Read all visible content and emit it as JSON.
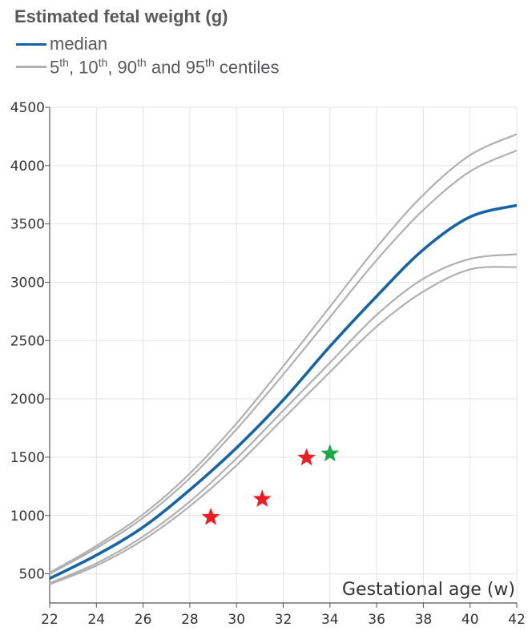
{
  "chart_data": {
    "type": "line",
    "title": "Estimated fetal weight (g)",
    "xlabel": "Gestational age (w)",
    "ylabel": "",
    "xlim": [
      22,
      42
    ],
    "ylim": [
      250,
      4500
    ],
    "x_ticks": [
      22,
      24,
      26,
      28,
      30,
      32,
      34,
      36,
      38,
      40,
      42
    ],
    "y_ticks": [
      500,
      1000,
      1500,
      2000,
      2500,
      3000,
      3500,
      4000,
      4500
    ],
    "grid": true,
    "legend_position": "top-left",
    "legend": {
      "median_label": "median",
      "centiles_label_parts": [
        "5",
        "th",
        ", 10",
        "th",
        ", 90",
        "th",
        " and 95",
        "th",
        " centiles"
      ]
    },
    "x": [
      22,
      24,
      26,
      28,
      30,
      32,
      34,
      36,
      38,
      40,
      42
    ],
    "series": [
      {
        "role": "centile",
        "values": [
          410,
          570,
          790,
          1080,
          1430,
          1830,
          2230,
          2620,
          2920,
          3110,
          3130
        ],
        "color": "#b0b0b0"
      },
      {
        "role": "centile",
        "values": [
          420,
          590,
          820,
          1120,
          1490,
          1900,
          2310,
          2720,
          3030,
          3200,
          3240
        ],
        "color": "#b0b0b0"
      },
      {
        "role": "median",
        "name": "median",
        "values": [
          460,
          660,
          900,
          1220,
          1580,
          1990,
          2450,
          2880,
          3280,
          3560,
          3660
        ],
        "color": "#1564a8"
      },
      {
        "role": "centile",
        "values": [
          500,
          720,
          980,
          1320,
          1740,
          2210,
          2700,
          3190,
          3620,
          3950,
          4130
        ],
        "color": "#b0b0b0"
      },
      {
        "role": "centile",
        "values": [
          510,
          740,
          1010,
          1360,
          1790,
          2280,
          2790,
          3300,
          3750,
          4090,
          4270
        ],
        "color": "#b0b0b0"
      }
    ],
    "points": [
      {
        "x": 28.9,
        "y": 985,
        "color": "#ef1c25",
        "marker": "star"
      },
      {
        "x": 31.1,
        "y": 1140,
        "color": "#ef1c25",
        "marker": "star"
      },
      {
        "x": 33.0,
        "y": 1495,
        "color": "#ef1c25",
        "marker": "star"
      },
      {
        "x": 34.0,
        "y": 1530,
        "color": "#1aaa4a",
        "marker": "star"
      }
    ]
  }
}
